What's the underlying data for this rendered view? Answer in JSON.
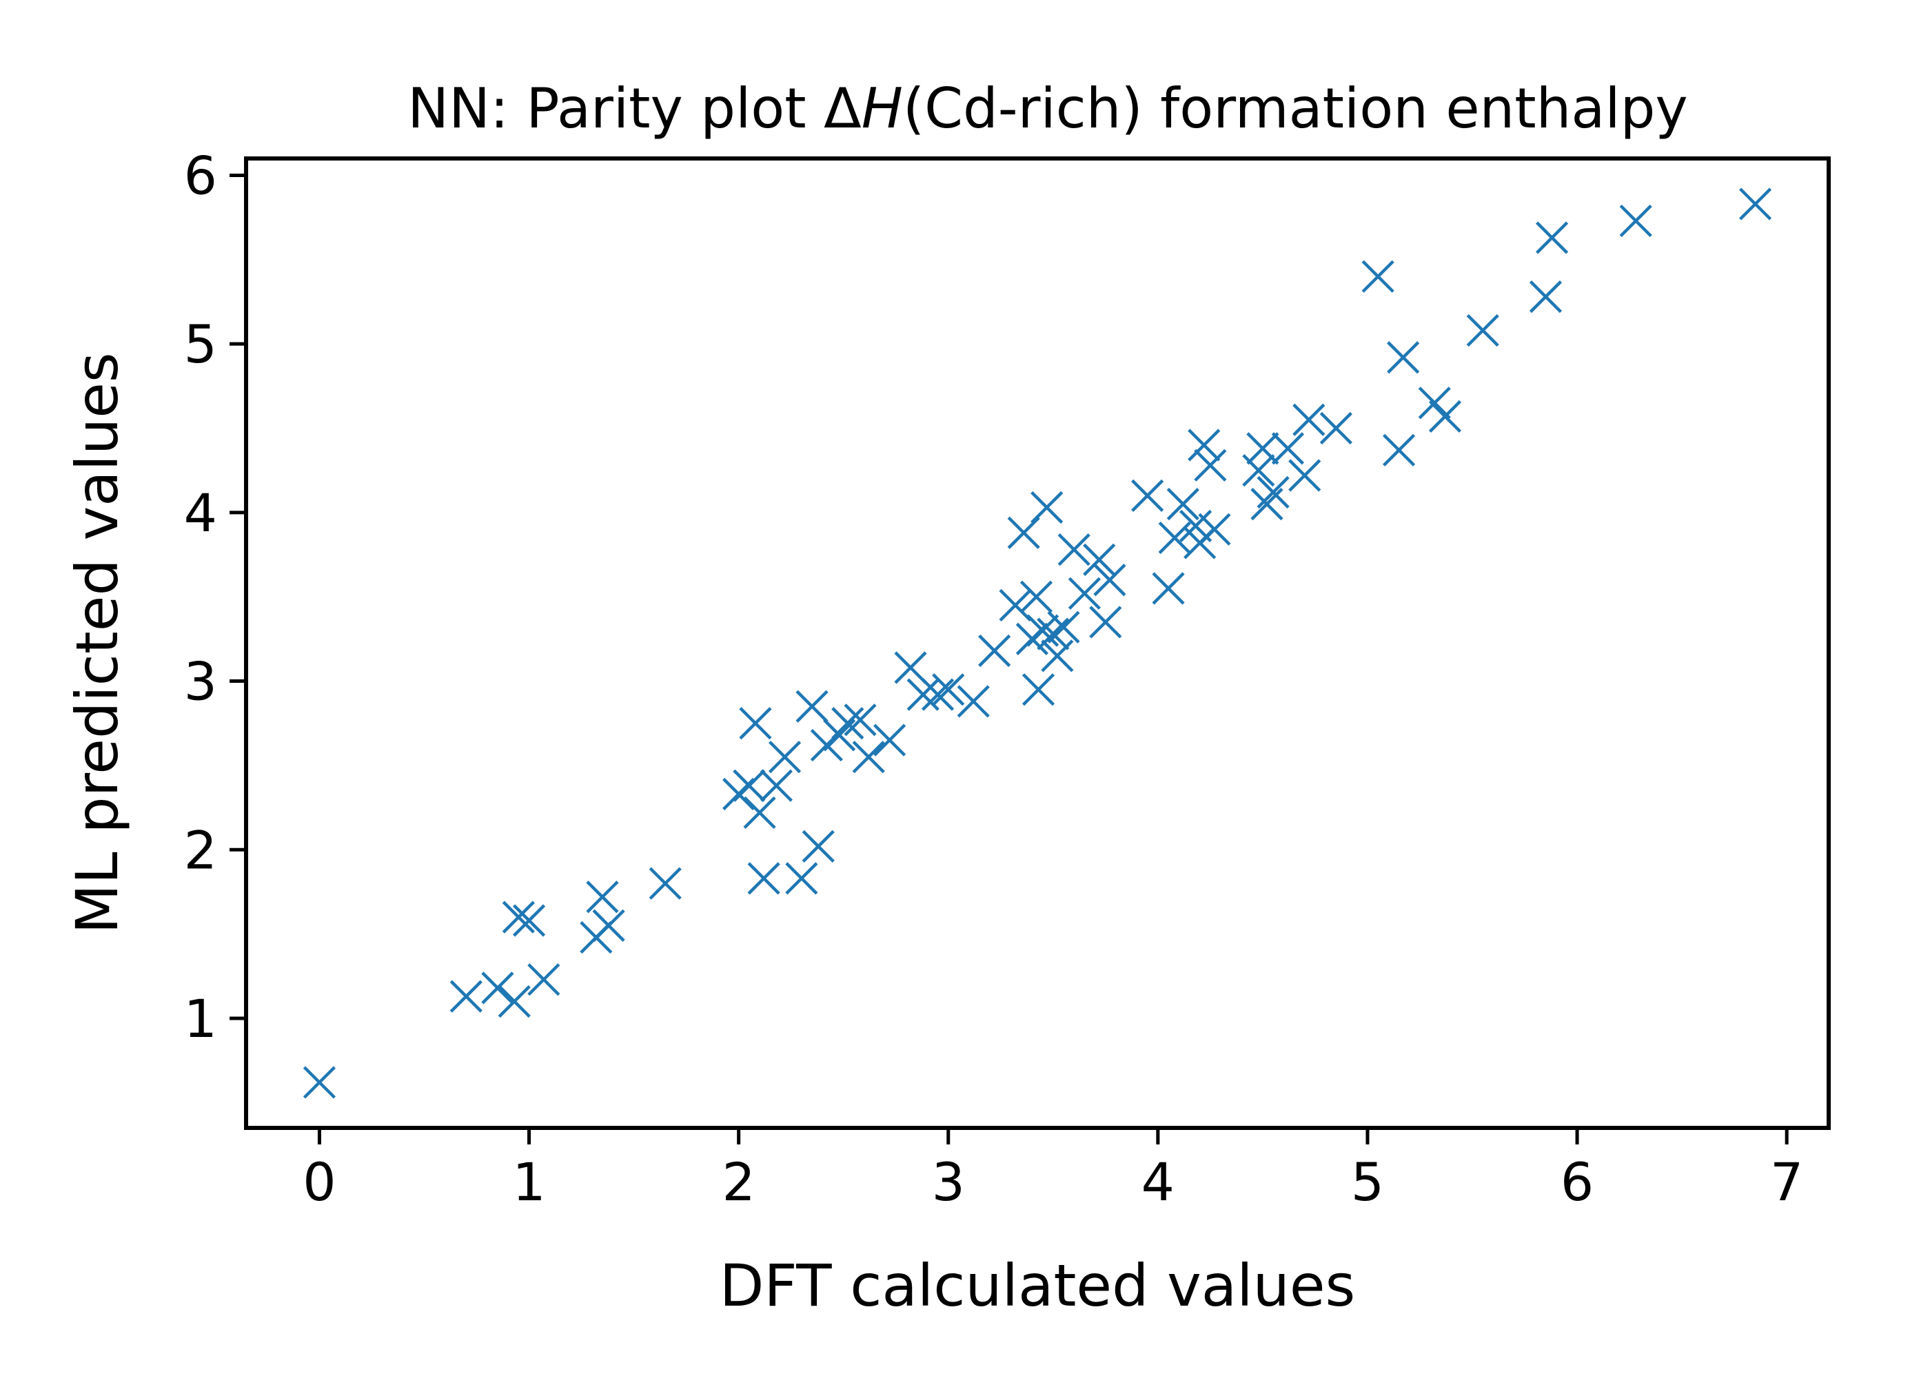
{
  "chart_data": {
    "type": "scatter",
    "title": {
      "prefix": "NN: Parity plot Δ",
      "italic": "H",
      "suffix": "(Cd-rich) formation enthalpy"
    },
    "xlabel": "DFT calculated values",
    "ylabel": "ML predicted values",
    "xlim": [
      -0.35,
      7.2
    ],
    "ylim": [
      0.35,
      6.1
    ],
    "xticks": [
      0,
      1,
      2,
      3,
      4,
      5,
      6,
      7
    ],
    "yticks": [
      1,
      2,
      3,
      4,
      5,
      6
    ],
    "grid": false,
    "legend": "none",
    "marker": "x",
    "color": "#1f77b4",
    "series": [
      {
        "points": [
          [
            0.0,
            0.62
          ],
          [
            0.7,
            1.13
          ],
          [
            0.85,
            1.18
          ],
          [
            0.93,
            1.1
          ],
          [
            0.95,
            1.6
          ],
          [
            1.0,
            1.58
          ],
          [
            1.07,
            1.23
          ],
          [
            1.32,
            1.48
          ],
          [
            1.35,
            1.72
          ],
          [
            1.38,
            1.55
          ],
          [
            1.65,
            1.8
          ],
          [
            2.0,
            2.33
          ],
          [
            2.05,
            2.38
          ],
          [
            2.08,
            2.75
          ],
          [
            2.1,
            2.22
          ],
          [
            2.12,
            1.83
          ],
          [
            2.18,
            2.38
          ],
          [
            2.22,
            2.55
          ],
          [
            2.3,
            1.83
          ],
          [
            2.35,
            2.85
          ],
          [
            2.38,
            2.02
          ],
          [
            2.42,
            2.62
          ],
          [
            2.48,
            2.68
          ],
          [
            2.52,
            2.75
          ],
          [
            2.58,
            2.77
          ],
          [
            2.62,
            2.55
          ],
          [
            2.72,
            2.65
          ],
          [
            2.82,
            3.08
          ],
          [
            2.88,
            2.92
          ],
          [
            2.95,
            2.92
          ],
          [
            3.0,
            2.95
          ],
          [
            3.12,
            2.88
          ],
          [
            3.22,
            3.18
          ],
          [
            3.32,
            3.45
          ],
          [
            3.36,
            3.88
          ],
          [
            3.4,
            3.25
          ],
          [
            3.42,
            3.5
          ],
          [
            3.43,
            2.95
          ],
          [
            3.45,
            3.3
          ],
          [
            3.47,
            4.03
          ],
          [
            3.5,
            3.28
          ],
          [
            3.52,
            3.15
          ],
          [
            3.55,
            3.32
          ],
          [
            3.6,
            3.78
          ],
          [
            3.65,
            3.52
          ],
          [
            3.72,
            3.72
          ],
          [
            3.75,
            3.35
          ],
          [
            3.77,
            3.6
          ],
          [
            3.95,
            4.1
          ],
          [
            4.05,
            3.55
          ],
          [
            4.08,
            3.85
          ],
          [
            4.12,
            4.05
          ],
          [
            4.18,
            3.92
          ],
          [
            4.2,
            3.82
          ],
          [
            4.22,
            4.4
          ],
          [
            4.25,
            4.28
          ],
          [
            4.27,
            3.9
          ],
          [
            4.48,
            4.25
          ],
          [
            4.5,
            4.38
          ],
          [
            4.52,
            4.05
          ],
          [
            4.55,
            4.12
          ],
          [
            4.62,
            4.38
          ],
          [
            4.7,
            4.22
          ],
          [
            4.72,
            4.55
          ],
          [
            4.85,
            4.5
          ],
          [
            5.05,
            5.4
          ],
          [
            5.15,
            4.37
          ],
          [
            5.17,
            4.92
          ],
          [
            5.32,
            4.65
          ],
          [
            5.37,
            4.57
          ],
          [
            5.55,
            5.08
          ],
          [
            5.85,
            5.28
          ],
          [
            5.88,
            5.63
          ],
          [
            6.28,
            5.73
          ],
          [
            6.85,
            5.83
          ]
        ]
      }
    ]
  }
}
